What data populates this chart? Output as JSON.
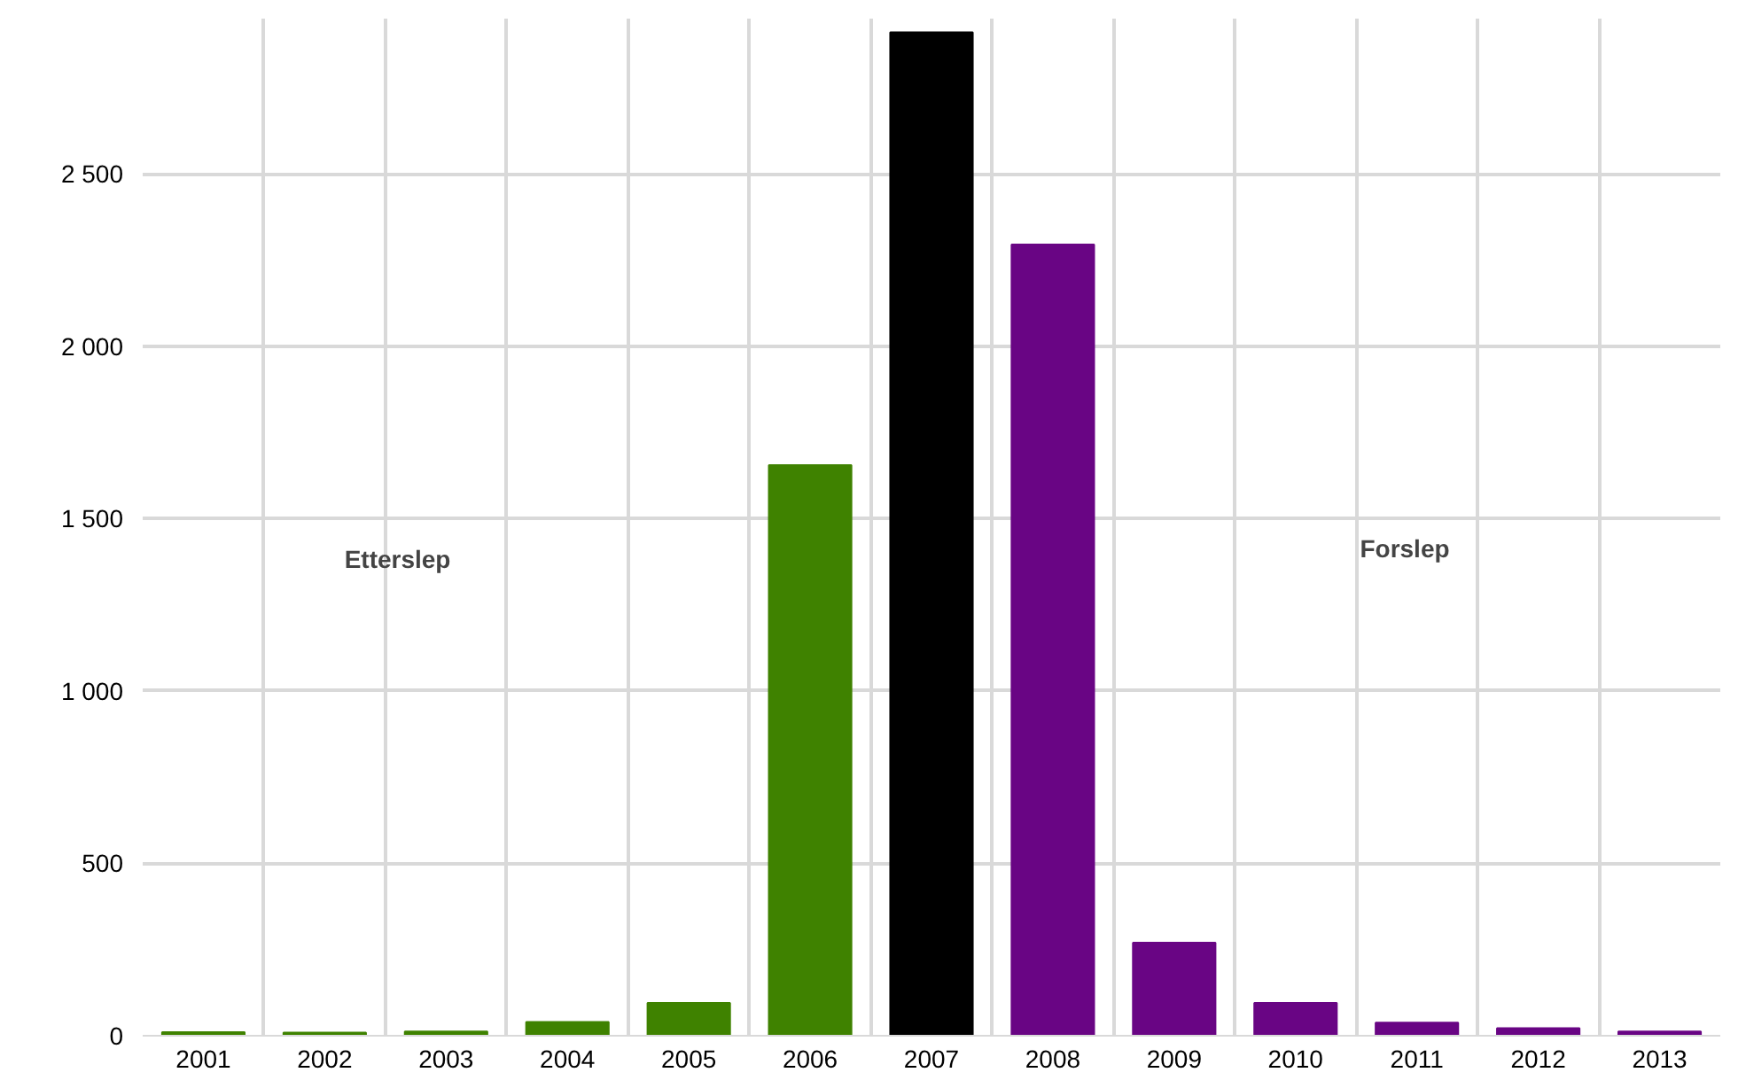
{
  "chart_data": {
    "type": "bar",
    "categories": [
      "2001",
      "2002",
      "2003",
      "2004",
      "2005",
      "2006",
      "2007",
      "2008",
      "2009",
      "2010",
      "2011",
      "2012",
      "2013"
    ],
    "series": [
      {
        "color": "#3f8200",
        "values": [
          10,
          9,
          12,
          40,
          95,
          1655,
          null,
          null,
          null,
          null,
          null,
          null,
          null
        ]
      },
      {
        "color": "#000000",
        "values": [
          null,
          null,
          null,
          null,
          null,
          null,
          2910,
          null,
          null,
          null,
          null,
          null,
          null
        ]
      },
      {
        "color": "#690584",
        "values": [
          null,
          null,
          null,
          null,
          null,
          null,
          null,
          2295,
          270,
          95,
          38,
          22,
          12
        ]
      }
    ],
    "ylim": [
      0,
      2950
    ],
    "yticks": [
      0,
      {
        "value": 500,
        "label": "500"
      },
      {
        "value": 1000,
        "label": "1 000"
      },
      {
        "value": 1500,
        "label": "1 500"
      },
      {
        "value": 2000,
        "label": "2 000"
      },
      {
        "value": 2500,
        "label": "2 500"
      }
    ],
    "grid": true,
    "annotations": [
      "Etterslep",
      "Forslep"
    ]
  }
}
